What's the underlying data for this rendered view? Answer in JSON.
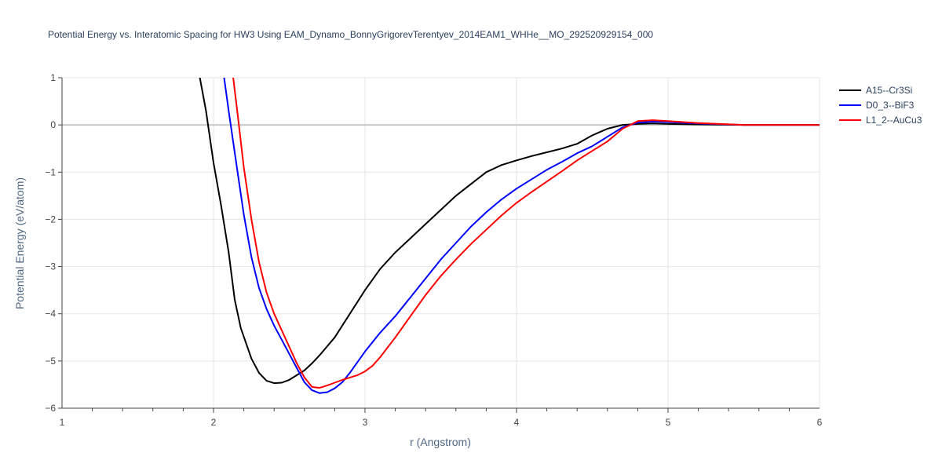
{
  "chart_data": {
    "type": "line",
    "title": "Potential Energy vs. Interatomic Spacing for HW3 Using EAM_Dynamo_BonnyGrigorevTerentyev_2014EAM1_WHHe__MO_292520929154_000",
    "xlabel": "r (Angstrom)",
    "ylabel": "Potential Energy (eV/atom)",
    "xlim": [
      1,
      6
    ],
    "ylim": [
      -6,
      1
    ],
    "x_ticks": [
      1,
      2,
      3,
      4,
      5,
      6
    ],
    "y_ticks": [
      1,
      0,
      -1,
      -2,
      -3,
      -4,
      -5,
      -6
    ],
    "y_tick_labels": [
      "1",
      "0",
      "−1",
      "−2",
      "−3",
      "−4",
      "−5",
      "−6"
    ],
    "grid": true,
    "legend_position": "top-right",
    "series": [
      {
        "name": "A15--Cr3Si",
        "color": "#000000",
        "points": [
          [
            1.91,
            1.0
          ],
          [
            1.95,
            0.3
          ],
          [
            2.0,
            -0.8
          ],
          [
            2.05,
            -1.7
          ],
          [
            2.1,
            -2.7
          ],
          [
            2.14,
            -3.7
          ],
          [
            2.18,
            -4.3
          ],
          [
            2.25,
            -4.95
          ],
          [
            2.3,
            -5.25
          ],
          [
            2.35,
            -5.42
          ],
          [
            2.4,
            -5.47
          ],
          [
            2.45,
            -5.46
          ],
          [
            2.5,
            -5.4
          ],
          [
            2.55,
            -5.3
          ],
          [
            2.6,
            -5.2
          ],
          [
            2.65,
            -5.05
          ],
          [
            2.7,
            -4.88
          ],
          [
            2.8,
            -4.5
          ],
          [
            2.9,
            -4.0
          ],
          [
            3.0,
            -3.5
          ],
          [
            3.1,
            -3.05
          ],
          [
            3.2,
            -2.7
          ],
          [
            3.3,
            -2.4
          ],
          [
            3.4,
            -2.1
          ],
          [
            3.5,
            -1.8
          ],
          [
            3.6,
            -1.5
          ],
          [
            3.7,
            -1.25
          ],
          [
            3.8,
            -1.0
          ],
          [
            3.9,
            -0.85
          ],
          [
            4.0,
            -0.75
          ],
          [
            4.1,
            -0.66
          ],
          [
            4.2,
            -0.58
          ],
          [
            4.3,
            -0.5
          ],
          [
            4.4,
            -0.4
          ],
          [
            4.5,
            -0.22
          ],
          [
            4.6,
            -0.08
          ],
          [
            4.7,
            0.0
          ],
          [
            4.8,
            0.02
          ],
          [
            4.9,
            0.03
          ],
          [
            5.0,
            0.02
          ],
          [
            5.2,
            0.01
          ],
          [
            5.5,
            0.0
          ],
          [
            6.0,
            0.0
          ]
        ]
      },
      {
        "name": "D0_3--BiF3",
        "color": "#0000ff",
        "points": [
          [
            2.07,
            1.0
          ],
          [
            2.1,
            0.3
          ],
          [
            2.15,
            -0.8
          ],
          [
            2.2,
            -1.9
          ],
          [
            2.25,
            -2.8
          ],
          [
            2.3,
            -3.45
          ],
          [
            2.35,
            -3.9
          ],
          [
            2.4,
            -4.25
          ],
          [
            2.45,
            -4.55
          ],
          [
            2.5,
            -4.85
          ],
          [
            2.55,
            -5.15
          ],
          [
            2.6,
            -5.45
          ],
          [
            2.65,
            -5.62
          ],
          [
            2.7,
            -5.68
          ],
          [
            2.75,
            -5.66
          ],
          [
            2.8,
            -5.58
          ],
          [
            2.85,
            -5.45
          ],
          [
            2.9,
            -5.25
          ],
          [
            3.0,
            -4.8
          ],
          [
            3.1,
            -4.4
          ],
          [
            3.2,
            -4.05
          ],
          [
            3.3,
            -3.65
          ],
          [
            3.4,
            -3.25
          ],
          [
            3.5,
            -2.85
          ],
          [
            3.6,
            -2.5
          ],
          [
            3.7,
            -2.15
          ],
          [
            3.8,
            -1.85
          ],
          [
            3.9,
            -1.58
          ],
          [
            4.0,
            -1.35
          ],
          [
            4.1,
            -1.15
          ],
          [
            4.2,
            -0.95
          ],
          [
            4.3,
            -0.78
          ],
          [
            4.4,
            -0.6
          ],
          [
            4.5,
            -0.45
          ],
          [
            4.6,
            -0.25
          ],
          [
            4.7,
            -0.05
          ],
          [
            4.8,
            0.05
          ],
          [
            4.9,
            0.07
          ],
          [
            5.0,
            0.06
          ],
          [
            5.2,
            0.03
          ],
          [
            5.5,
            0.0
          ],
          [
            6.0,
            0.0
          ]
        ]
      },
      {
        "name": "L1_2--AuCu3",
        "color": "#ff0000",
        "points": [
          [
            2.13,
            1.0
          ],
          [
            2.16,
            0.2
          ],
          [
            2.2,
            -0.9
          ],
          [
            2.25,
            -2.0
          ],
          [
            2.3,
            -2.9
          ],
          [
            2.35,
            -3.55
          ],
          [
            2.4,
            -4.0
          ],
          [
            2.45,
            -4.35
          ],
          [
            2.5,
            -4.7
          ],
          [
            2.55,
            -5.05
          ],
          [
            2.6,
            -5.35
          ],
          [
            2.65,
            -5.55
          ],
          [
            2.7,
            -5.57
          ],
          [
            2.75,
            -5.52
          ],
          [
            2.8,
            -5.46
          ],
          [
            2.85,
            -5.4
          ],
          [
            2.9,
            -5.35
          ],
          [
            2.95,
            -5.3
          ],
          [
            3.0,
            -5.22
          ],
          [
            3.05,
            -5.1
          ],
          [
            3.1,
            -4.92
          ],
          [
            3.2,
            -4.5
          ],
          [
            3.3,
            -4.05
          ],
          [
            3.4,
            -3.6
          ],
          [
            3.5,
            -3.2
          ],
          [
            3.6,
            -2.85
          ],
          [
            3.7,
            -2.52
          ],
          [
            3.8,
            -2.22
          ],
          [
            3.9,
            -1.92
          ],
          [
            4.0,
            -1.65
          ],
          [
            4.1,
            -1.42
          ],
          [
            4.2,
            -1.2
          ],
          [
            4.3,
            -0.98
          ],
          [
            4.4,
            -0.75
          ],
          [
            4.5,
            -0.55
          ],
          [
            4.6,
            -0.35
          ],
          [
            4.7,
            -0.08
          ],
          [
            4.8,
            0.08
          ],
          [
            4.9,
            0.1
          ],
          [
            5.0,
            0.08
          ],
          [
            5.2,
            0.04
          ],
          [
            5.5,
            0.0
          ],
          [
            6.0,
            0.0
          ]
        ]
      }
    ]
  }
}
